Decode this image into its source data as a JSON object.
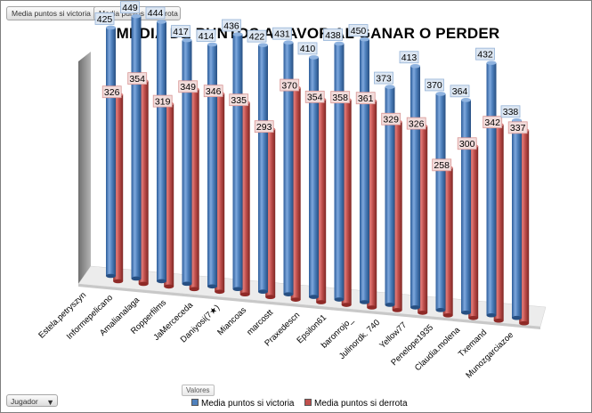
{
  "field_buttons": {
    "victoria": "Media puntos si victoria",
    "derrota": "Media puntos si derrota"
  },
  "footer": {
    "jugador_label": "Jugador",
    "valores_label": "Valores",
    "filter_icon": "filter-icon"
  },
  "colors": {
    "victoria": "#4f81bd",
    "derrota": "#c0504d"
  },
  "chart_data": {
    "type": "bar",
    "title": "MEDIA DE PUNTOS A FAVOR AL GANAR O PERDER",
    "xlabel": "",
    "ylabel": "",
    "ylim": [
      0,
      460
    ],
    "grid": false,
    "legend_position": "bottom",
    "categories": [
      "Estela.petryszyn",
      "Informepelicano",
      "Amalianalaga",
      "Ropperfilms",
      "JaMerceceda",
      "Daniyosi(7★)",
      "Miancoas",
      "marcostt",
      "Praxedescn",
      "Epsilon61",
      "baronrojo_",
      "Julinordk. 740",
      "Yellow77",
      "Penelope1935",
      "Claudia.molena",
      "Txemand",
      "Munozgarciazoe"
    ],
    "series": [
      {
        "name": "Media puntos si victoria",
        "values": [
          425,
          449,
          444,
          417,
          414,
          436,
          422,
          431,
          410,
          438,
          450,
          373,
          413,
          370,
          364,
          432,
          338
        ]
      },
      {
        "name": "Media puntos si derrota",
        "values": [
          326,
          354,
          319,
          349,
          346,
          335,
          293,
          370,
          354,
          358,
          361,
          329,
          326,
          258,
          300,
          342,
          337
        ]
      }
    ],
    "data_labels": {
      "victoria": [
        "425",
        "449",
        "444",
        "417",
        "414",
        "436",
        "422",
        "431",
        "410",
        "438",
        "450",
        "373",
        "413",
        "370",
        "364",
        "432",
        "338"
      ],
      "derrota": [
        "326",
        "354",
        "319",
        "349",
        "346",
        "335",
        "293",
        "370",
        "354",
        "358",
        "361",
        "329",
        "326",
        "258",
        "300",
        "342",
        "337"
      ]
    }
  }
}
